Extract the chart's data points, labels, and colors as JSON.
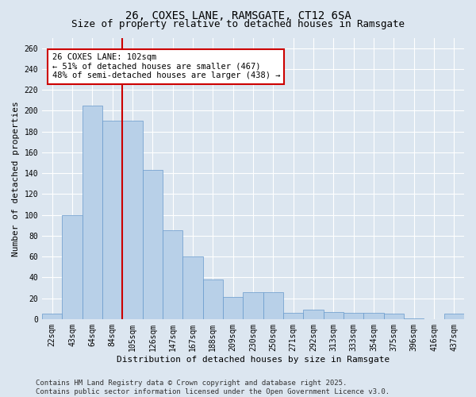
{
  "title": "26, COXES LANE, RAMSGATE, CT12 6SA",
  "subtitle": "Size of property relative to detached houses in Ramsgate",
  "xlabel": "Distribution of detached houses by size in Ramsgate",
  "ylabel": "Number of detached properties",
  "categories": [
    "22sqm",
    "43sqm",
    "64sqm",
    "84sqm",
    "105sqm",
    "126sqm",
    "147sqm",
    "167sqm",
    "188sqm",
    "209sqm",
    "230sqm",
    "250sqm",
    "271sqm",
    "292sqm",
    "313sqm",
    "333sqm",
    "354sqm",
    "375sqm",
    "396sqm",
    "416sqm",
    "437sqm"
  ],
  "values": [
    5,
    100,
    205,
    190,
    190,
    143,
    85,
    60,
    38,
    21,
    26,
    26,
    6,
    9,
    7,
    6,
    6,
    5,
    1,
    0,
    5
  ],
  "bar_color": "#b8d0e8",
  "bar_edge_color": "#6699cc",
  "vline_x_index": 4,
  "vline_color": "#cc0000",
  "annotation_text": "26 COXES LANE: 102sqm\n← 51% of detached houses are smaller (467)\n48% of semi-detached houses are larger (438) →",
  "annotation_box_facecolor": "#ffffff",
  "annotation_box_edgecolor": "#cc0000",
  "ylim": [
    0,
    270
  ],
  "yticks": [
    0,
    20,
    40,
    60,
    80,
    100,
    120,
    140,
    160,
    180,
    200,
    220,
    240,
    260
  ],
  "bg_color": "#dce6f0",
  "grid_color": "#ffffff",
  "footer": "Contains HM Land Registry data © Crown copyright and database right 2025.\nContains public sector information licensed under the Open Government Licence v3.0.",
  "title_fontsize": 10,
  "subtitle_fontsize": 9,
  "xlabel_fontsize": 8,
  "ylabel_fontsize": 8,
  "tick_fontsize": 7,
  "annotation_fontsize": 7.5,
  "footer_fontsize": 6.5
}
